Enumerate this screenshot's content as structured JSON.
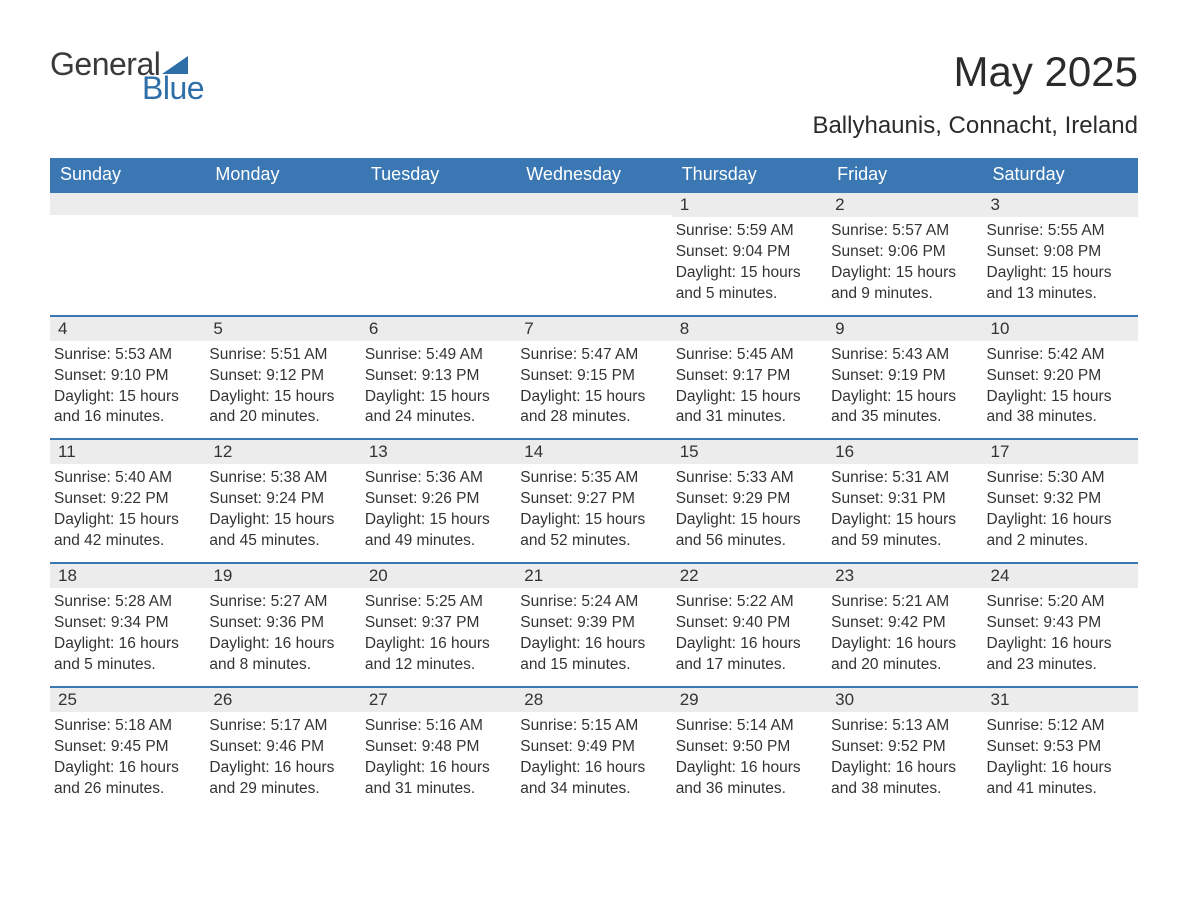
{
  "brand": {
    "word1": "General",
    "word2": "Blue",
    "accent_color": "#2f6fa8"
  },
  "title": "May 2025",
  "location": "Ballyhaunis, Connacht, Ireland",
  "style": {
    "header_bg": "#3a77b3",
    "header_text": "#ffffff",
    "daynum_bg": "#ececec",
    "daynum_border": "#3a77b3",
    "body_text": "#333333",
    "page_bg": "#ffffff",
    "title_fontsize": 42,
    "location_fontsize": 24,
    "weekday_fontsize": 18,
    "cell_fontsize": 15.5
  },
  "weekdays": [
    "Sunday",
    "Monday",
    "Tuesday",
    "Wednesday",
    "Thursday",
    "Friday",
    "Saturday"
  ],
  "weeks": [
    [
      null,
      null,
      null,
      null,
      {
        "n": "1",
        "sr": "5:59 AM",
        "ss": "9:04 PM",
        "dl": "15 hours and 5 minutes."
      },
      {
        "n": "2",
        "sr": "5:57 AM",
        "ss": "9:06 PM",
        "dl": "15 hours and 9 minutes."
      },
      {
        "n": "3",
        "sr": "5:55 AM",
        "ss": "9:08 PM",
        "dl": "15 hours and 13 minutes."
      }
    ],
    [
      {
        "n": "4",
        "sr": "5:53 AM",
        "ss": "9:10 PM",
        "dl": "15 hours and 16 minutes."
      },
      {
        "n": "5",
        "sr": "5:51 AM",
        "ss": "9:12 PM",
        "dl": "15 hours and 20 minutes."
      },
      {
        "n": "6",
        "sr": "5:49 AM",
        "ss": "9:13 PM",
        "dl": "15 hours and 24 minutes."
      },
      {
        "n": "7",
        "sr": "5:47 AM",
        "ss": "9:15 PM",
        "dl": "15 hours and 28 minutes."
      },
      {
        "n": "8",
        "sr": "5:45 AM",
        "ss": "9:17 PM",
        "dl": "15 hours and 31 minutes."
      },
      {
        "n": "9",
        "sr": "5:43 AM",
        "ss": "9:19 PM",
        "dl": "15 hours and 35 minutes."
      },
      {
        "n": "10",
        "sr": "5:42 AM",
        "ss": "9:20 PM",
        "dl": "15 hours and 38 minutes."
      }
    ],
    [
      {
        "n": "11",
        "sr": "5:40 AM",
        "ss": "9:22 PM",
        "dl": "15 hours and 42 minutes."
      },
      {
        "n": "12",
        "sr": "5:38 AM",
        "ss": "9:24 PM",
        "dl": "15 hours and 45 minutes."
      },
      {
        "n": "13",
        "sr": "5:36 AM",
        "ss": "9:26 PM",
        "dl": "15 hours and 49 minutes."
      },
      {
        "n": "14",
        "sr": "5:35 AM",
        "ss": "9:27 PM",
        "dl": "15 hours and 52 minutes."
      },
      {
        "n": "15",
        "sr": "5:33 AM",
        "ss": "9:29 PM",
        "dl": "15 hours and 56 minutes."
      },
      {
        "n": "16",
        "sr": "5:31 AM",
        "ss": "9:31 PM",
        "dl": "15 hours and 59 minutes."
      },
      {
        "n": "17",
        "sr": "5:30 AM",
        "ss": "9:32 PM",
        "dl": "16 hours and 2 minutes."
      }
    ],
    [
      {
        "n": "18",
        "sr": "5:28 AM",
        "ss": "9:34 PM",
        "dl": "16 hours and 5 minutes."
      },
      {
        "n": "19",
        "sr": "5:27 AM",
        "ss": "9:36 PM",
        "dl": "16 hours and 8 minutes."
      },
      {
        "n": "20",
        "sr": "5:25 AM",
        "ss": "9:37 PM",
        "dl": "16 hours and 12 minutes."
      },
      {
        "n": "21",
        "sr": "5:24 AM",
        "ss": "9:39 PM",
        "dl": "16 hours and 15 minutes."
      },
      {
        "n": "22",
        "sr": "5:22 AM",
        "ss": "9:40 PM",
        "dl": "16 hours and 17 minutes."
      },
      {
        "n": "23",
        "sr": "5:21 AM",
        "ss": "9:42 PM",
        "dl": "16 hours and 20 minutes."
      },
      {
        "n": "24",
        "sr": "5:20 AM",
        "ss": "9:43 PM",
        "dl": "16 hours and 23 minutes."
      }
    ],
    [
      {
        "n": "25",
        "sr": "5:18 AM",
        "ss": "9:45 PM",
        "dl": "16 hours and 26 minutes."
      },
      {
        "n": "26",
        "sr": "5:17 AM",
        "ss": "9:46 PM",
        "dl": "16 hours and 29 minutes."
      },
      {
        "n": "27",
        "sr": "5:16 AM",
        "ss": "9:48 PM",
        "dl": "16 hours and 31 minutes."
      },
      {
        "n": "28",
        "sr": "5:15 AM",
        "ss": "9:49 PM",
        "dl": "16 hours and 34 minutes."
      },
      {
        "n": "29",
        "sr": "5:14 AM",
        "ss": "9:50 PM",
        "dl": "16 hours and 36 minutes."
      },
      {
        "n": "30",
        "sr": "5:13 AM",
        "ss": "9:52 PM",
        "dl": "16 hours and 38 minutes."
      },
      {
        "n": "31",
        "sr": "5:12 AM",
        "ss": "9:53 PM",
        "dl": "16 hours and 41 minutes."
      }
    ]
  ],
  "labels": {
    "sunrise": "Sunrise: ",
    "sunset": "Sunset: ",
    "daylight": "Daylight: "
  }
}
